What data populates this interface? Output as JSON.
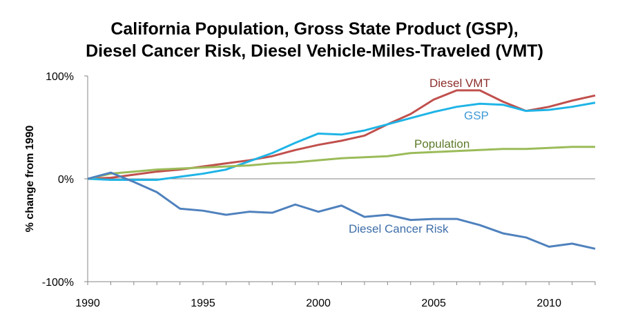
{
  "chart_data": {
    "type": "line",
    "title": [
      "California Population, Gross State Product (GSP),",
      "Diesel Cancer Risk, Diesel Vehicle-Miles-Traveled (VMT)"
    ],
    "ylabel": "% change from 1990",
    "xlabel": "",
    "xlim": [
      1990,
      2012
    ],
    "ylim": [
      -100,
      100
    ],
    "x_ticks": [
      1990,
      1995,
      2000,
      2005,
      2010
    ],
    "y_ticks": [
      {
        "value": 100,
        "label": "100%"
      },
      {
        "value": 0,
        "label": "0%"
      },
      {
        "value": -100,
        "label": "-100%"
      }
    ],
    "legend": "inline labels",
    "x": [
      1990,
      1991,
      1992,
      1993,
      1994,
      1995,
      1996,
      1997,
      1998,
      1999,
      2000,
      2001,
      2002,
      2003,
      2004,
      2005,
      2006,
      2007,
      2008,
      2009,
      2010,
      2011,
      2012
    ],
    "series": [
      {
        "name": "Diesel VMT",
        "color": "#c0504d",
        "values": [
          0,
          1,
          4,
          7,
          9,
          12,
          15,
          18,
          22,
          28,
          33,
          37,
          42,
          53,
          63,
          77,
          86,
          86,
          75,
          66,
          70,
          76,
          81
        ]
      },
      {
        "name": "GSP",
        "color": "#1fb4e6",
        "values": [
          0,
          -1,
          -1,
          -1,
          2,
          5,
          9,
          17,
          25,
          35,
          44,
          43,
          47,
          53,
          59,
          65,
          70,
          73,
          72,
          66,
          67,
          70,
          74
        ]
      },
      {
        "name": "Population",
        "color": "#9bbb59",
        "values": [
          0,
          5,
          7,
          9,
          10,
          11,
          12,
          13,
          15,
          16,
          18,
          20,
          21,
          22,
          25,
          26,
          27,
          28,
          29,
          29,
          30,
          31,
          31
        ]
      },
      {
        "name": "Diesel Cancer Risk",
        "color": "#4f81bd",
        "values": [
          0,
          6,
          -3,
          -13,
          -29,
          -31,
          -35,
          -32,
          -33,
          -25,
          -32,
          -26,
          -37,
          -35,
          -40,
          -39,
          -39,
          -45,
          -53,
          -57,
          -66,
          -63,
          -68
        ]
      }
    ]
  }
}
